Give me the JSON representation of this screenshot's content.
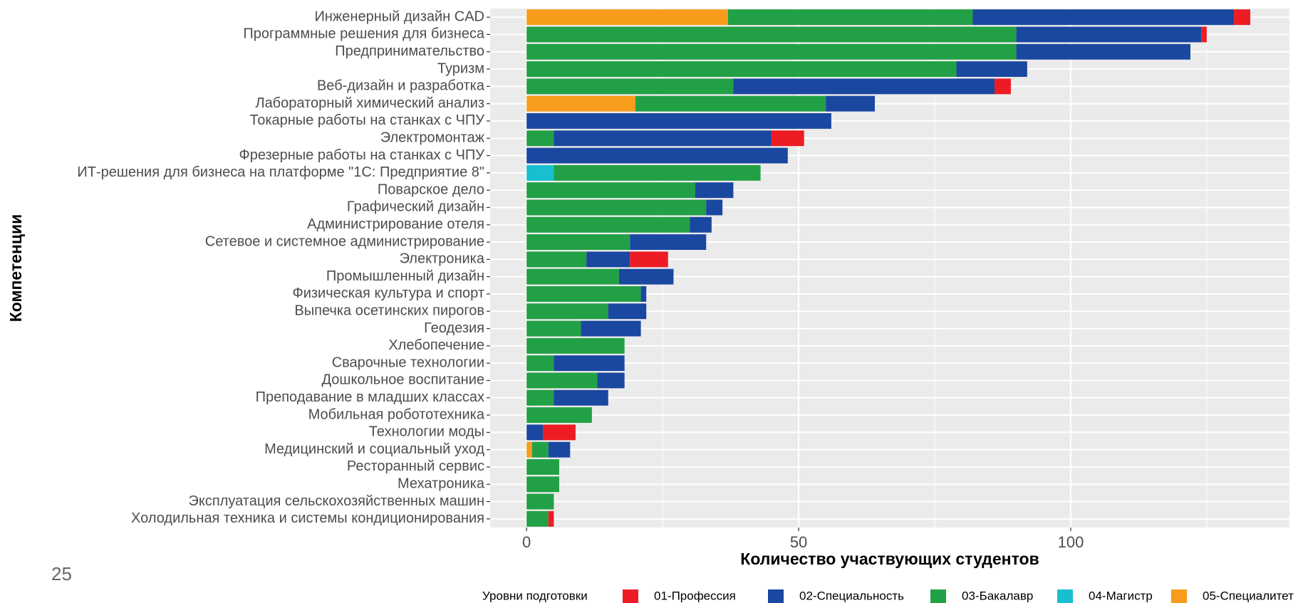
{
  "page_number": "25",
  "chart_data": {
    "type": "stacked_barh",
    "xlabel": "Количество участвующих студентов",
    "ylabel": "Компетенции",
    "legend_title": "Уровни подготовки",
    "categories": [
      "Инженерный дизайн CAD",
      "Программные решения для бизнеса",
      "Предпринимательство",
      "Туризм",
      "Веб-дизайн и разработка",
      "Лабораторный химический анализ",
      "Токарные работы на станках с ЧПУ",
      "Электромонтаж",
      "Фрезерные работы на станках с ЧПУ",
      "ИТ-решения для бизнеса на платформе \"1С: Предприятие 8\"",
      "Поварское дело",
      "Графический дизайн",
      "Администрирование отеля",
      "Сетевое и системное администрирование",
      "Электроника",
      "Промышленный дизайн",
      "Физическая культура и спорт",
      "Выпечка осетинских пирогов",
      "Геодезия",
      "Хлебопечение",
      "Сварочные технологии",
      "Дошкольное воспитание",
      "Преподавание в младших классах",
      "Мобильная робототехника",
      "Технологии моды",
      "Медицинский и социальный уход",
      "Ресторанный сервис",
      "Мехатроника",
      "Эксплуатация сельскохозяйственных машин",
      "Холодильная техника и системы кондиционирования"
    ],
    "series": [
      {
        "name": "01-Профессия",
        "color": "#ed1c24",
        "values": [
          3,
          1,
          0,
          0,
          3,
          0,
          0,
          6,
          0,
          0,
          0,
          0,
          0,
          0,
          7,
          0,
          0,
          0,
          0,
          0,
          0,
          0,
          0,
          0,
          6,
          0,
          0,
          0,
          0,
          1
        ]
      },
      {
        "name": "02-Специальность",
        "color": "#1a47a0",
        "values": [
          48,
          34,
          32,
          13,
          48,
          9,
          56,
          40,
          48,
          0,
          7,
          3,
          4,
          14,
          8,
          10,
          1,
          7,
          11,
          0,
          13,
          5,
          10,
          0,
          3,
          4,
          0,
          0,
          0,
          0
        ]
      },
      {
        "name": "03-Бакалавр",
        "color": "#22a045",
        "values": [
          45,
          90,
          90,
          79,
          38,
          35,
          0,
          5,
          0,
          38,
          31,
          33,
          30,
          19,
          11,
          17,
          21,
          15,
          10,
          18,
          5,
          13,
          5,
          12,
          0,
          3,
          6,
          6,
          5,
          4
        ]
      },
      {
        "name": "04-Магистр",
        "color": "#17bfcf",
        "values": [
          0,
          0,
          0,
          0,
          0,
          0,
          0,
          0,
          0,
          5,
          0,
          0,
          0,
          0,
          0,
          0,
          0,
          0,
          0,
          0,
          0,
          0,
          0,
          0,
          0,
          0,
          0,
          0,
          0,
          0
        ]
      },
      {
        "name": "05-Специалитет",
        "color": "#f89c1c",
        "values": [
          37,
          0,
          0,
          0,
          0,
          20,
          0,
          0,
          0,
          0,
          0,
          0,
          0,
          0,
          0,
          0,
          0,
          0,
          0,
          0,
          0,
          0,
          0,
          0,
          0,
          1,
          0,
          0,
          0,
          0
        ]
      }
    ],
    "xlim": [
      -6.7,
      140.2
    ],
    "xticks": [
      0,
      50,
      100
    ],
    "minor_xticks": [
      25,
      75,
      125
    ],
    "grid": true
  }
}
